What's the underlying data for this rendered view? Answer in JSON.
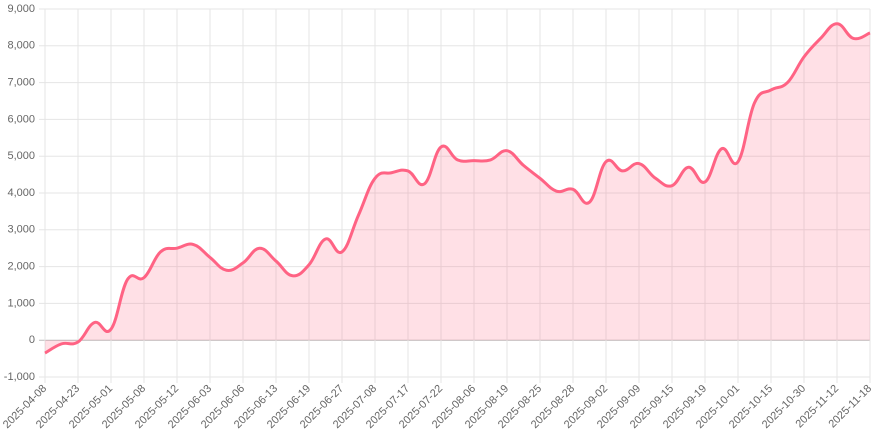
{
  "chart_data": {
    "type": "line",
    "categories": [
      "2025-04-08",
      null,
      "2025-04-23",
      null,
      "2025-05-01",
      null,
      "2025-05-08",
      null,
      "2025-05-12",
      null,
      "2025-06-03",
      null,
      "2025-06-06",
      null,
      "2025-06-13",
      null,
      "2025-06-19",
      null,
      "2025-06-27",
      null,
      "2025-07-08",
      null,
      "2025-07-17",
      null,
      "2025-07-22",
      null,
      "2025-08-06",
      null,
      "2025-08-19",
      null,
      "2025-08-25",
      null,
      "2025-08-28",
      null,
      "2025-09-02",
      null,
      "2025-09-09",
      null,
      "2025-09-15",
      null,
      "2025-09-19",
      null,
      "2025-10-01",
      null,
      "2025-10-15",
      null,
      "2025-10-30",
      null,
      "2025-11-12",
      null,
      "2025-11-18"
    ],
    "series": [
      {
        "color": "#ff6384",
        "fill": "rgba(255,99,132,0.2)",
        "values": [
          -350,
          -100,
          -50,
          480,
          300,
          1650,
          1700,
          2400,
          2500,
          2600,
          2250,
          1900,
          2100,
          2500,
          2150,
          1750,
          2050,
          2750,
          2400,
          3400,
          4400,
          4550,
          4600,
          4250,
          5250,
          4900,
          4880,
          4900,
          5150,
          4750,
          4400,
          4050,
          4100,
          3750,
          4850,
          4600,
          4800,
          4400,
          4200,
          4700,
          4300,
          5200,
          4850,
          6450,
          6800,
          7000,
          7700,
          8200,
          8600,
          8200,
          8350
        ]
      }
    ],
    "ylim": [
      -1000,
      9000
    ],
    "yticks": [
      {
        "value": -1000,
        "label": "-1,000"
      },
      0,
      {
        "value": 1000,
        "label": "1,000"
      },
      {
        "value": 2000,
        "label": "2,000"
      },
      {
        "value": 3000,
        "label": "3,000"
      },
      {
        "value": 4000,
        "label": "4,000"
      },
      {
        "value": 5000,
        "label": "5,000"
      },
      {
        "value": 6000,
        "label": "6,000"
      },
      {
        "value": 7000,
        "label": "7,000"
      },
      {
        "value": 8000,
        "label": "8,000"
      },
      {
        "value": 9000,
        "label": "9,000"
      }
    ],
    "grid": true
  }
}
